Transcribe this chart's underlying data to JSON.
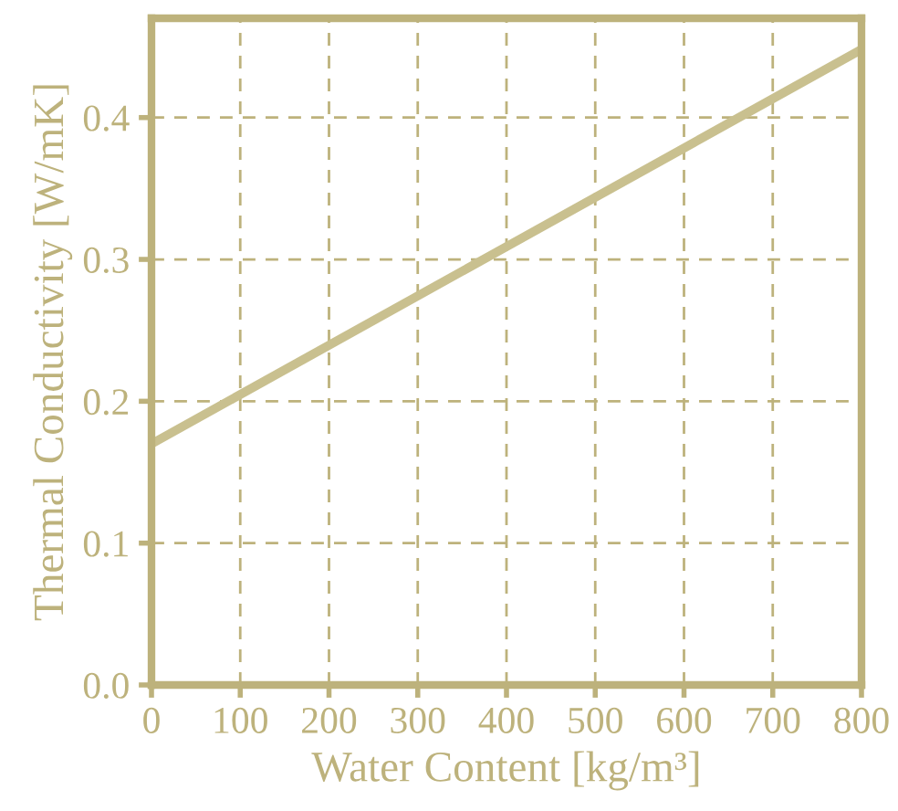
{
  "chart_data": {
    "type": "line",
    "xlabel": "Water Content [kg/m³]",
    "ylabel": "Thermal Conductivity [W/mK]",
    "x": [
      0,
      800
    ],
    "series": [
      {
        "color": "#c9c08f",
        "values": [
          0.17,
          0.448
        ]
      }
    ],
    "xlim": [
      0,
      800
    ],
    "ylim": [
      0,
      0.47
    ],
    "xticks": [
      0,
      100,
      200,
      300,
      400,
      500,
      600,
      700,
      800
    ],
    "yticks": [
      {
        "value": 0,
        "label": "0.0"
      },
      {
        "value": 0.1,
        "label": "0.1"
      },
      {
        "value": 0.2,
        "label": "0.2"
      },
      {
        "value": 0.3,
        "label": "0.3"
      },
      {
        "value": 0.4,
        "label": "0.4"
      }
    ],
    "grid": true,
    "line_style": "solid",
    "marker": "none"
  }
}
